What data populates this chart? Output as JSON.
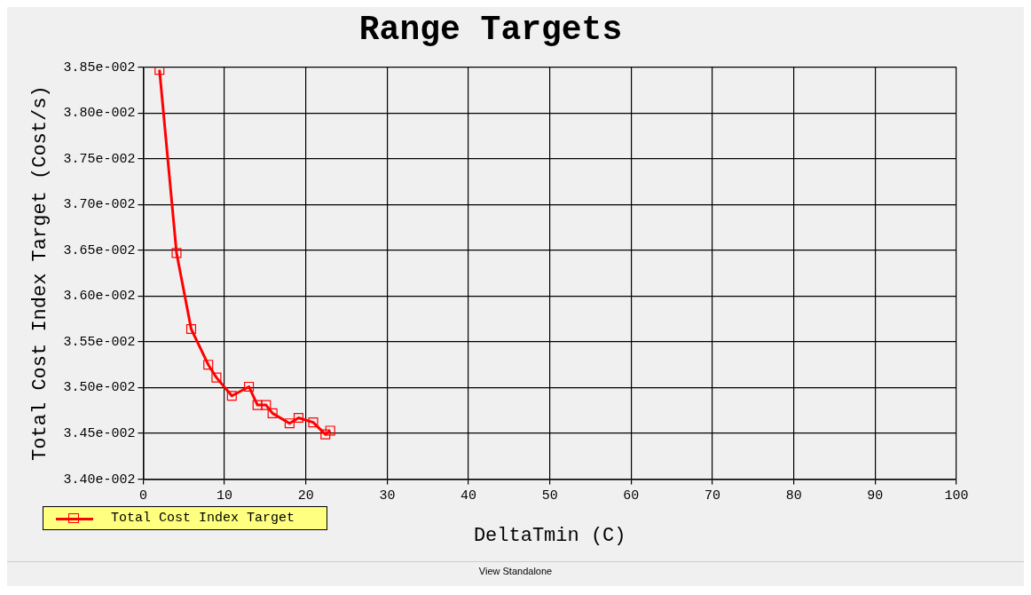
{
  "chart_data": {
    "type": "line",
    "title": "Range Targets",
    "xlabel": "DeltaTmin (C)",
    "ylabel": "Total Cost Index Target (Cost/s)",
    "xlim": [
      0,
      100
    ],
    "xticks": [
      0,
      10,
      20,
      30,
      40,
      50,
      60,
      70,
      80,
      90,
      100
    ],
    "ylim": [
      0.034,
      0.0385
    ],
    "yticks": [
      {
        "value": 0.034,
        "label": "3.40e-002"
      },
      {
        "value": 0.0345,
        "label": "3.45e-002"
      },
      {
        "value": 0.035,
        "label": "3.50e-002"
      },
      {
        "value": 0.0355,
        "label": "3.55e-002"
      },
      {
        "value": 0.036,
        "label": "3.60e-002"
      },
      {
        "value": 0.0365,
        "label": "3.65e-002"
      },
      {
        "value": 0.037,
        "label": "3.70e-002"
      },
      {
        "value": 0.0375,
        "label": "3.75e-002"
      },
      {
        "value": 0.038,
        "label": "3.80e-002"
      },
      {
        "value": 0.0385,
        "label": "3.85e-002"
      }
    ],
    "grid": true,
    "legend": "bottom left",
    "marker": "square",
    "line_style": "solid",
    "series": [
      {
        "name": "Total Cost Index Target",
        "color": "#ff0000",
        "x": [
          2,
          4.1,
          5.9,
          8,
          9,
          10.9,
          13,
          14.05,
          15.1,
          15.9,
          18,
          19.1,
          20.9,
          22.4,
          23
        ],
        "values": [
          0.03847,
          0.03647,
          0.03564,
          0.03525,
          0.03511,
          0.03491,
          0.03501,
          0.03481,
          0.03481,
          0.03472,
          0.03461,
          0.03467,
          0.03462,
          0.03449,
          0.03453
        ]
      }
    ],
    "annotations": [
      "View Standalone"
    ]
  }
}
